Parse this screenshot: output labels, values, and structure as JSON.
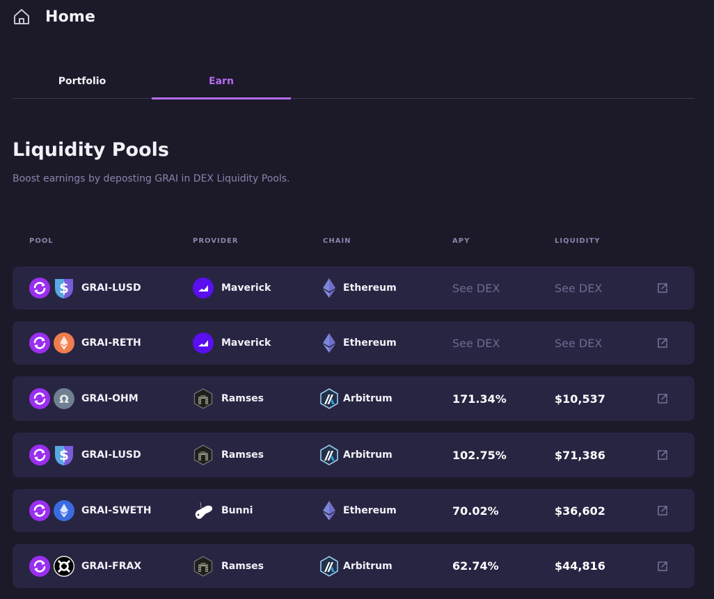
{
  "header": {
    "title": "Home",
    "icon": "home-icon"
  },
  "tabs": [
    {
      "label": "Portfolio",
      "active": false
    },
    {
      "label": "Earn",
      "active": true
    }
  ],
  "section": {
    "title": "Liquidity Pools",
    "subtitle": "Boost earnings by deposting GRAI in DEX Liquidity Pools."
  },
  "columns": {
    "pool": "POOL",
    "provider": "PROVIDER",
    "chain": "CHAIN",
    "apy": "APY",
    "liquidity": "LIQUIDITY"
  },
  "colors": {
    "accent": "#b56cf0",
    "row_bg": "#282543",
    "page_bg": "#1c1a29",
    "muted": "#6f6a8f"
  },
  "rows": [
    {
      "pool": "GRAI-LUSD",
      "token_icon": "lusd-icon",
      "provider": "Maverick",
      "provider_icon": "maverick-icon",
      "chain": "Ethereum",
      "chain_icon": "ethereum-icon",
      "apy": "See DEX",
      "liquidity": "See DEX"
    },
    {
      "pool": "GRAI-RETH",
      "token_icon": "reth-icon",
      "provider": "Maverick",
      "provider_icon": "maverick-icon",
      "chain": "Ethereum",
      "chain_icon": "ethereum-icon",
      "apy": "See DEX",
      "liquidity": "See DEX"
    },
    {
      "pool": "GRAI-OHM",
      "token_icon": "ohm-icon",
      "provider": "Ramses",
      "provider_icon": "ramses-icon",
      "chain": "Arbitrum",
      "chain_icon": "arbitrum-icon",
      "apy": "171.34%",
      "liquidity": "$10,537"
    },
    {
      "pool": "GRAI-LUSD",
      "token_icon": "lusd-icon",
      "provider": "Ramses",
      "provider_icon": "ramses-icon",
      "chain": "Arbitrum",
      "chain_icon": "arbitrum-icon",
      "apy": "102.75%",
      "liquidity": "$71,386"
    },
    {
      "pool": "GRAI-SWETH",
      "token_icon": "sweth-icon",
      "provider": "Bunni",
      "provider_icon": "bunni-icon",
      "chain": "Ethereum",
      "chain_icon": "ethereum-icon",
      "apy": "70.02%",
      "liquidity": "$36,602"
    },
    {
      "pool": "GRAI-FRAX",
      "token_icon": "frax-icon",
      "provider": "Ramses",
      "provider_icon": "ramses-icon",
      "chain": "Arbitrum",
      "chain_icon": "arbitrum-icon",
      "apy": "62.74%",
      "liquidity": "$44,816"
    }
  ]
}
